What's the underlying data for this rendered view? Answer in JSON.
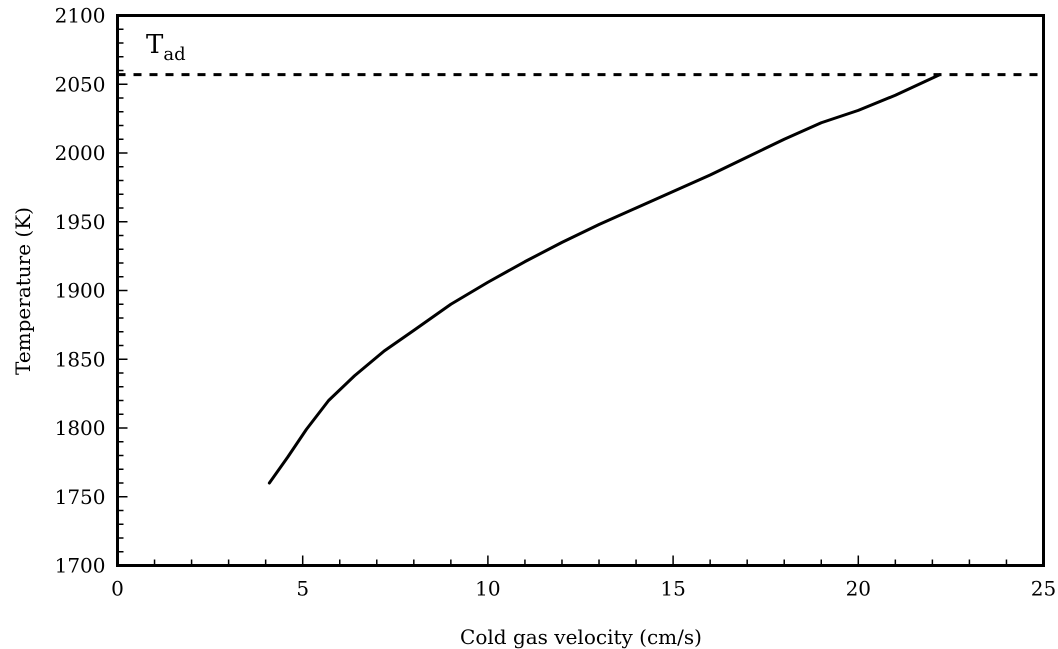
{
  "chart_data": {
    "type": "line",
    "title": "",
    "xlabel": "Cold gas velocity (cm/s)",
    "ylabel": "Temperature (K)",
    "xlim": [
      0,
      25
    ],
    "ylim": [
      1700,
      2100
    ],
    "x_ticks": [
      "0",
      "5",
      "10",
      "15",
      "20",
      "25"
    ],
    "y_ticks": [
      "1700",
      "1750",
      "1800",
      "1850",
      "1900",
      "1950",
      "2000",
      "2050",
      "2100"
    ],
    "grid": false,
    "legend": "none",
    "series": [
      {
        "x": [
          4.1,
          4.6,
          5.1,
          5.7,
          6.4,
          7.2,
          8.0,
          9.0,
          10.0,
          11.0,
          12.0,
          13.0,
          14.0,
          15.0,
          16.0,
          17.0,
          18.0,
          19.0,
          20.0,
          21.0,
          22.2
        ],
        "y": [
          1760,
          1779,
          1799,
          1820,
          1838,
          1856,
          1871,
          1890,
          1906,
          1921,
          1935,
          1948,
          1960,
          1972,
          1984,
          1997,
          2010,
          2022,
          2031,
          2042,
          2057
        ]
      }
    ],
    "reference_line": {
      "y": 2057,
      "style": "dashed",
      "label": "T",
      "label_sub": "ad"
    }
  }
}
